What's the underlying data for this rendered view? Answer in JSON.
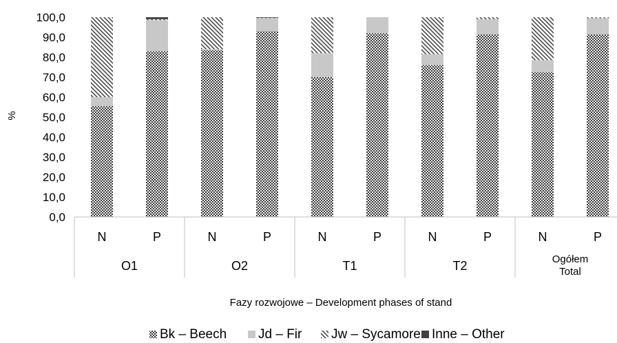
{
  "chart_data": {
    "type": "bar",
    "stacked": true,
    "percent_scale": true,
    "title": "",
    "ylabel": "%",
    "xlabel": "Fazy rozwojowe – Development phases of stand",
    "ylim": [
      0,
      100
    ],
    "yticks": [
      "0,0",
      "10,0",
      "20,0",
      "30,0",
      "40,0",
      "50,0",
      "60,0",
      "70,0",
      "80,0",
      "90,0",
      "100,0"
    ],
    "groups": [
      {
        "label": "O1",
        "categories": [
          "N",
          "P"
        ]
      },
      {
        "label": "O2",
        "categories": [
          "N",
          "P"
        ]
      },
      {
        "label": "T1",
        "categories": [
          "N",
          "P"
        ]
      },
      {
        "label": "T2",
        "categories": [
          "N",
          "P"
        ]
      },
      {
        "label": "Ogółem",
        "label2": "Total",
        "categories": [
          "N",
          "P"
        ]
      }
    ],
    "series": [
      {
        "name": "Bk – Beech",
        "color": "#444444",
        "pattern": "dense-checker",
        "values": [
          55.5,
          83.0,
          83.5,
          93.0,
          70.0,
          92.0,
          76.0,
          91.5,
          72.5,
          91.5
        ]
      },
      {
        "name": "Jd – Fir",
        "color": "#c8c8c8",
        "pattern": "solid",
        "values": [
          4.5,
          15.5,
          0.5,
          6.5,
          12.0,
          8.0,
          5.5,
          7.5,
          6.0,
          8.0
        ]
      },
      {
        "name": "Jw – Sycamore",
        "color": "#555555",
        "pattern": "diagonal-stripes",
        "values": [
          40.0,
          0.5,
          16.0,
          0.2,
          18.0,
          0.0,
          18.5,
          1.0,
          21.5,
          0.5
        ]
      },
      {
        "name": "Inne – Other",
        "color": "#404040",
        "pattern": "solid",
        "values": [
          0.0,
          1.0,
          0.0,
          0.3,
          0.0,
          0.0,
          0.0,
          0.0,
          0.0,
          0.0
        ]
      }
    ],
    "grid": false,
    "legend_position": "bottom"
  }
}
